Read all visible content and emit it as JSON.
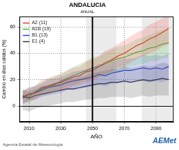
{
  "chart_data": {
    "type": "line",
    "title": "ANDALUCIA",
    "subtitle": "ANUAL",
    "x_label": "AÑO",
    "y_label": "Cambio en días cálidos (%)",
    "source": "Agencia Estatal de Meteorología",
    "logo": "AEMet",
    "x": [
      2006,
      2010,
      2014,
      2018,
      2022,
      2026,
      2030,
      2034,
      2038,
      2042,
      2046,
      2050,
      2054,
      2058,
      2062,
      2066,
      2070,
      2074,
      2078,
      2082,
      2086,
      2090,
      2094,
      2098
    ],
    "series": [
      {
        "name": "A2 (11)",
        "color": "#e8312a",
        "values": [
          7,
          9,
          10,
          14,
          15,
          17,
          18,
          20,
          22,
          23,
          26,
          27,
          30,
          33,
          35,
          38,
          40,
          43,
          46,
          48,
          51,
          53,
          56,
          59
        ],
        "low": [
          2,
          4,
          5,
          8,
          9,
          11,
          12,
          13,
          15,
          16,
          18,
          19,
          22,
          24,
          26,
          29,
          30,
          33,
          36,
          38,
          40,
          42,
          45,
          47
        ],
        "high": [
          12,
          14,
          15,
          20,
          21,
          23,
          24,
          27,
          29,
          30,
          34,
          35,
          38,
          42,
          44,
          47,
          50,
          53,
          56,
          58,
          62,
          64,
          67,
          68
        ]
      },
      {
        "name": "A1B (19)",
        "color": "#3fb23a",
        "values": [
          8,
          7,
          11,
          13,
          15,
          16,
          19,
          21,
          23,
          25,
          27,
          29,
          30,
          32,
          34,
          36,
          37,
          39,
          41,
          42,
          44,
          45,
          47,
          48
        ],
        "low": [
          3,
          2,
          6,
          8,
          9,
          10,
          13,
          15,
          16,
          18,
          20,
          21,
          22,
          24,
          25,
          27,
          28,
          30,
          31,
          32,
          34,
          34,
          36,
          37
        ],
        "high": [
          13,
          12,
          16,
          18,
          21,
          22,
          25,
          27,
          30,
          32,
          34,
          37,
          38,
          40,
          43,
          45,
          46,
          48,
          51,
          52,
          54,
          56,
          58,
          59
        ]
      },
      {
        "name": "B1 (13)",
        "color": "#2a3fd8",
        "values": [
          6,
          9,
          10,
          12,
          14,
          15,
          16,
          18,
          19,
          20,
          21,
          22,
          24,
          23,
          25,
          26,
          27,
          27,
          28,
          29,
          28,
          29,
          28,
          30
        ],
        "low": [
          1,
          4,
          5,
          7,
          8,
          9,
          10,
          12,
          12,
          13,
          14,
          15,
          16,
          15,
          17,
          17,
          18,
          18,
          19,
          19,
          18,
          19,
          18,
          20
        ],
        "high": [
          11,
          14,
          15,
          17,
          20,
          21,
          22,
          24,
          26,
          27,
          28,
          29,
          32,
          31,
          33,
          35,
          36,
          36,
          37,
          39,
          38,
          39,
          38,
          40
        ]
      },
      {
        "name": "E1 (4)",
        "color": "#333333",
        "values": [
          7,
          6,
          8,
          9,
          10,
          11,
          12,
          13,
          13,
          14,
          15,
          16,
          17,
          17,
          18,
          18,
          19,
          18,
          19,
          20,
          19,
          20,
          21,
          20
        ],
        "low": [
          -3,
          -4,
          -2,
          -1,
          0,
          1,
          2,
          3,
          3,
          4,
          5,
          5,
          6,
          6,
          7,
          7,
          7,
          6,
          7,
          8,
          7,
          8,
          8,
          8
        ],
        "high": [
          12,
          11,
          13,
          15,
          16,
          17,
          19,
          20,
          21,
          22,
          23,
          25,
          26,
          27,
          28,
          28,
          30,
          29,
          30,
          31,
          30,
          31,
          33,
          32
        ]
      }
    ],
    "xlim": [
      2004,
      2101
    ],
    "xticks": [
      2010,
      2030,
      2050,
      2070,
      2090
    ],
    "ylim": [
      -12,
      68
    ],
    "yticks": [
      0,
      20,
      40,
      60
    ],
    "reference_lines": {
      "x": [
        2050
      ],
      "y": [
        0
      ]
    },
    "shaded_periods": [
      [
        2046,
        2065
      ],
      [
        2081,
        2100
      ]
    ],
    "grid": true,
    "legend": "top left"
  }
}
